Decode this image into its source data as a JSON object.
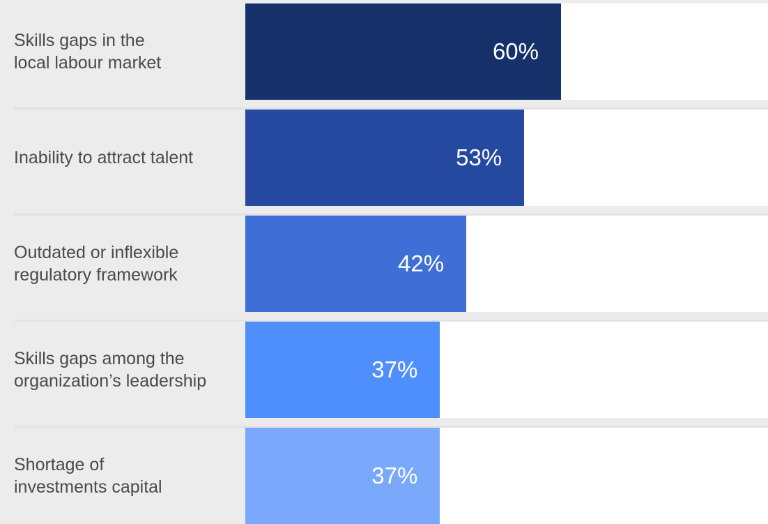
{
  "chart_data": {
    "type": "bar",
    "orientation": "horizontal",
    "categories": [
      "Skills gaps in the\nlocal labour market",
      "Inability to attract talent",
      "Outdated or inflexible\nregulatory framework",
      "Skills gaps among the\norganization’s leadership",
      "Shortage of\ninvestments capital"
    ],
    "values": [
      60,
      53,
      42,
      37,
      37
    ],
    "value_labels": [
      "60%",
      "53%",
      "42%",
      "37%",
      "37%"
    ],
    "unit": "%",
    "xlim": [
      0,
      100
    ],
    "colors": [
      "#16306a",
      "#24499e",
      "#3e6ed6",
      "#4f8ffb",
      "#7aa9fc"
    ],
    "title": "",
    "xlabel": "",
    "ylabel": "",
    "grid": false
  }
}
